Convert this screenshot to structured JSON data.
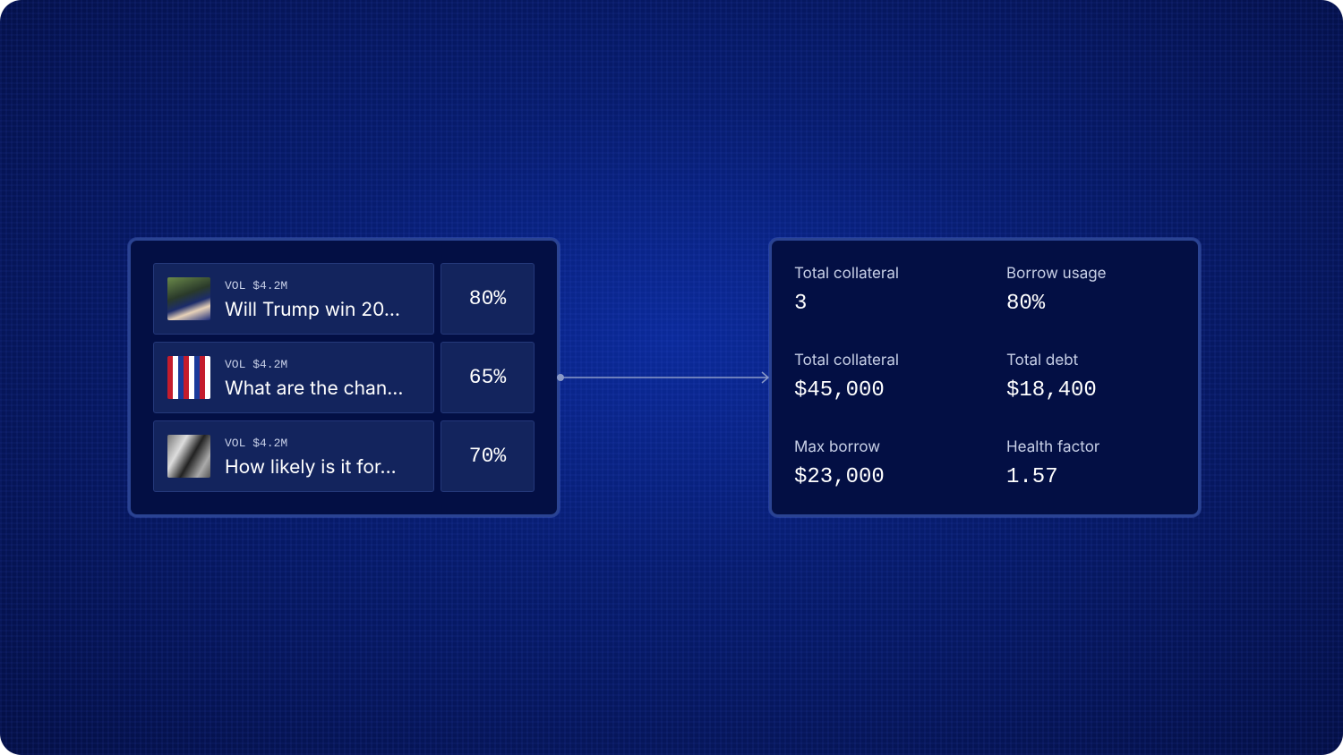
{
  "markets": [
    {
      "volume": "VOL $4.2M",
      "title": "Will Trump win 20...",
      "probability": "80%"
    },
    {
      "volume": "VOL $4.2M",
      "title": "What are the chan...",
      "probability": "65%"
    },
    {
      "volume": "VOL $4.2M",
      "title": "How likely is it for...",
      "probability": "70%"
    }
  ],
  "stats": [
    {
      "label": "Total collateral",
      "value": "3"
    },
    {
      "label": "Borrow usage",
      "value": "80%"
    },
    {
      "label": "Total collateral",
      "value": "$45,000"
    },
    {
      "label": "Total debt",
      "value": "$18,400"
    },
    {
      "label": "Max borrow",
      "value": "$23,000"
    },
    {
      "label": "Health factor",
      "value": "1.57"
    }
  ]
}
